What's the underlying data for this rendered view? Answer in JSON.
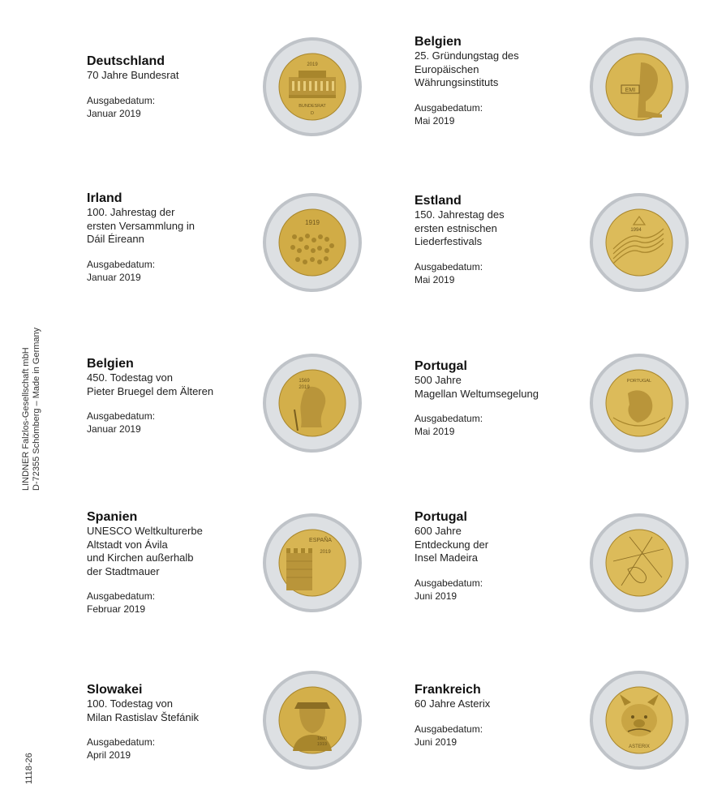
{
  "publisher": {
    "line1": "LINDNER Falzlos-Gesellschaft mbH",
    "line2": "D-72355 Schömberg – Made in Germany"
  },
  "page_code": "1118-26",
  "date_label": "Ausgabedatum:",
  "colors": {
    "ring": "#c9ccd0",
    "center": "#d6b34f",
    "center_dark": "#a8862c"
  },
  "coins": [
    {
      "country": "Deutschland",
      "lines": [
        "70 Jahre Bundesrat"
      ],
      "date": "Januar 2019",
      "coin_text": [
        "2019",
        "BUNDESRAT",
        "D"
      ],
      "icon": "bundesrat-building-icon"
    },
    {
      "country": "Belgien",
      "lines": [
        "25. Gründungstag des",
        "Europäischen",
        "Währungsinstituts"
      ],
      "date": "Mai 2019",
      "coin_text": [
        "EMI"
      ],
      "icon": "portrait-icon"
    },
    {
      "country": "Irland",
      "lines": [
        "100. Jahrestag der",
        "ersten Versammlung in",
        "Dáil Éireann"
      ],
      "date": "Januar 2019",
      "coin_text": [
        "1919"
      ],
      "icon": "assembly-crowd-icon"
    },
    {
      "country": "Estland",
      "lines": [
        "150. Jahrestag des",
        "ersten estnischen",
        "Liederfestivals"
      ],
      "date": "Mai 2019",
      "coin_text": [
        "1994"
      ],
      "icon": "song-festival-icon"
    },
    {
      "country": "Belgien",
      "lines": [
        "450. Todestag von",
        "Pieter Bruegel dem Älteren"
      ],
      "date": "Januar 2019",
      "coin_text": [
        "1569",
        "2019"
      ],
      "icon": "bruegel-painter-icon"
    },
    {
      "country": "Portugal",
      "lines": [
        "500 Jahre",
        "Magellan Weltumsegelung"
      ],
      "date": "Mai 2019",
      "coin_text": [
        "PORTUGAL"
      ],
      "icon": "magellan-portrait-icon"
    },
    {
      "country": "Spanien",
      "lines": [
        "UNESCO Weltkulturerbe",
        "Altstadt von Ávila",
        "und Kirchen außerhalb",
        "der Stadtmauer"
      ],
      "date": "Februar 2019",
      "coin_text": [
        "ESPAÑA",
        "2019"
      ],
      "icon": "city-wall-icon"
    },
    {
      "country": "Portugal",
      "lines": [
        "600 Jahre",
        "Entdeckung der",
        "Insel Madeira"
      ],
      "date": "Juni 2019",
      "coin_text": [],
      "icon": "map-lines-icon"
    },
    {
      "country": "Slowakei",
      "lines": [
        "100. Todestag von",
        "Milan Rastislav Štefánik"
      ],
      "date": "April 2019",
      "coin_text": [
        "1880",
        "1919"
      ],
      "icon": "stefanik-portrait-icon"
    },
    {
      "country": "Frankreich",
      "lines": [
        "60 Jahre Asterix"
      ],
      "date": "Juni 2019",
      "coin_text": [
        "ASTERIX"
      ],
      "icon": "asterix-icon"
    }
  ]
}
